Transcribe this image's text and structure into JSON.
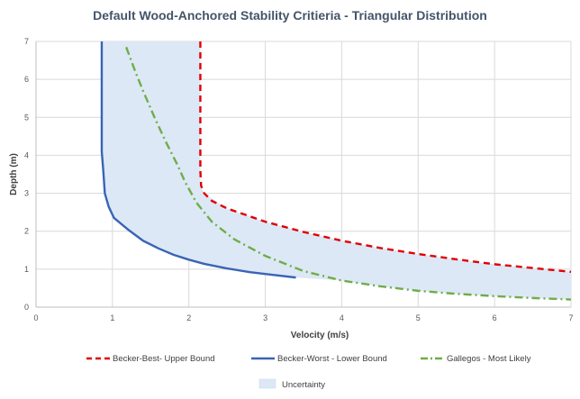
{
  "chart_data": {
    "type": "line",
    "title": "Default Wood-Anchored Stability Critieria - Triangular Distribution",
    "xlabel": "Velocity (m/s)",
    "ylabel": "Depth (m)",
    "xlim": [
      0,
      7
    ],
    "ylim": [
      0,
      7
    ],
    "xticks": [
      "0",
      "1",
      "2",
      "3",
      "4",
      "5",
      "6",
      "7"
    ],
    "yticks": [
      "0",
      "1",
      "2",
      "3",
      "4",
      "5",
      "6",
      "7"
    ],
    "grid": true,
    "legend_position": "bottom",
    "series": [
      {
        "name": "Becker-Best- Upper Bound",
        "color": "#e00000",
        "style": "dashed",
        "points": [
          [
            2.15,
            7.0
          ],
          [
            2.15,
            5.0
          ],
          [
            2.15,
            3.6
          ],
          [
            2.16,
            3.2
          ],
          [
            2.2,
            3.0
          ],
          [
            2.3,
            2.8
          ],
          [
            2.5,
            2.6
          ],
          [
            3.0,
            2.25
          ],
          [
            3.5,
            1.98
          ],
          [
            4.0,
            1.75
          ],
          [
            4.5,
            1.56
          ],
          [
            5.0,
            1.4
          ],
          [
            5.5,
            1.26
          ],
          [
            6.0,
            1.13
          ],
          [
            6.5,
            1.03
          ],
          [
            7.0,
            0.93
          ]
        ]
      },
      {
        "name": "Becker-Worst - Lower Bound",
        "color": "#3a64b4",
        "style": "solid",
        "points": [
          [
            0.86,
            7.0
          ],
          [
            0.86,
            5.0
          ],
          [
            0.86,
            4.1
          ],
          [
            0.88,
            3.6
          ],
          [
            0.9,
            3.0
          ],
          [
            0.95,
            2.65
          ],
          [
            1.02,
            2.35
          ],
          [
            1.2,
            2.05
          ],
          [
            1.4,
            1.75
          ],
          [
            1.6,
            1.55
          ],
          [
            1.8,
            1.38
          ],
          [
            2.0,
            1.25
          ],
          [
            2.2,
            1.14
          ],
          [
            2.5,
            1.02
          ],
          [
            2.8,
            0.92
          ],
          [
            3.1,
            0.85
          ],
          [
            3.4,
            0.78
          ]
        ]
      },
      {
        "name": "Gallegos - Most Likely",
        "color": "#70ad47",
        "style": "dashdot",
        "points": [
          [
            1.18,
            6.85
          ],
          [
            1.3,
            6.2
          ],
          [
            1.4,
            5.7
          ],
          [
            1.55,
            5.0
          ],
          [
            1.7,
            4.35
          ],
          [
            1.85,
            3.75
          ],
          [
            1.95,
            3.3
          ],
          [
            2.1,
            2.75
          ],
          [
            2.3,
            2.25
          ],
          [
            2.6,
            1.78
          ],
          [
            3.0,
            1.35
          ],
          [
            3.5,
            0.95
          ],
          [
            4.0,
            0.7
          ],
          [
            4.5,
            0.55
          ],
          [
            5.0,
            0.43
          ],
          [
            5.5,
            0.35
          ],
          [
            6.0,
            0.29
          ],
          [
            6.5,
            0.24
          ],
          [
            7.0,
            0.2
          ]
        ]
      }
    ],
    "area": {
      "name": "Uncertainty",
      "color": "#dce8f6",
      "upper": [
        [
          2.15,
          7.0
        ],
        [
          2.15,
          3.2
        ],
        [
          2.2,
          3.0
        ],
        [
          2.5,
          2.6
        ],
        [
          3.0,
          2.25
        ],
        [
          3.5,
          1.98
        ],
        [
          4.0,
          1.75
        ],
        [
          4.5,
          1.56
        ],
        [
          5.0,
          1.4
        ],
        [
          5.5,
          1.26
        ],
        [
          6.0,
          1.13
        ],
        [
          6.5,
          1.03
        ],
        [
          7.0,
          0.93
        ]
      ],
      "lower": [
        [
          0.86,
          7.0
        ],
        [
          0.86,
          4.1
        ],
        [
          0.9,
          3.0
        ],
        [
          0.95,
          2.65
        ],
        [
          1.02,
          2.35
        ],
        [
          1.4,
          1.75
        ],
        [
          2.0,
          1.25
        ],
        [
          2.5,
          1.02
        ],
        [
          3.1,
          0.85
        ],
        [
          3.4,
          0.78
        ],
        [
          4.0,
          0.7
        ],
        [
          4.5,
          0.55
        ],
        [
          5.0,
          0.43
        ],
        [
          5.5,
          0.35
        ],
        [
          6.0,
          0.29
        ],
        [
          6.5,
          0.24
        ],
        [
          7.0,
          0.2
        ]
      ]
    }
  }
}
